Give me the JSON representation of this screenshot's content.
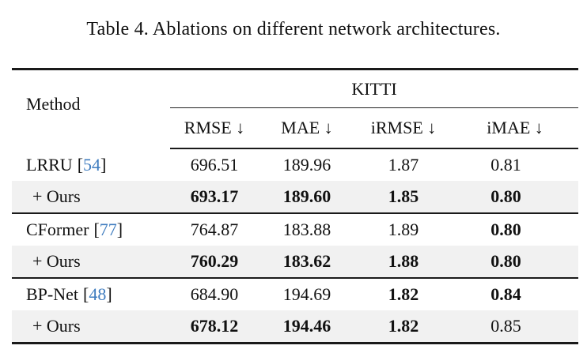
{
  "caption": "Table 4. Ablations on different network architectures.",
  "table": {
    "header": {
      "method": "Method",
      "dataset": "KITTI",
      "columns": [
        "RMSE ↓",
        "MAE ↓",
        "iRMSE ↓",
        "iMAE ↓"
      ]
    },
    "bracket_open": "[",
    "bracket_close": "]",
    "rows": [
      {
        "name": "LRRU",
        "cite": "54",
        "highlight": false,
        "values": [
          "696.51",
          "189.96",
          "1.87",
          "0.81"
        ],
        "bold": [
          false,
          false,
          false,
          false
        ]
      },
      {
        "name": "+ Ours",
        "cite": "",
        "highlight": true,
        "values": [
          "693.17",
          "189.60",
          "1.85",
          "0.80"
        ],
        "bold": [
          true,
          true,
          true,
          true
        ]
      },
      {
        "name": "CFormer",
        "cite": "77",
        "highlight": false,
        "values": [
          "764.87",
          "183.88",
          "1.89",
          "0.80"
        ],
        "bold": [
          false,
          false,
          false,
          true
        ]
      },
      {
        "name": "+ Ours",
        "cite": "",
        "highlight": true,
        "values": [
          "760.29",
          "183.62",
          "1.88",
          "0.80"
        ],
        "bold": [
          true,
          true,
          true,
          true
        ]
      },
      {
        "name": "BP-Net",
        "cite": "48",
        "highlight": false,
        "values": [
          "684.90",
          "194.69",
          "1.82",
          "0.84"
        ],
        "bold": [
          false,
          false,
          true,
          true
        ]
      },
      {
        "name": "+ Ours",
        "cite": "",
        "highlight": true,
        "values": [
          "678.12",
          "194.46",
          "1.82",
          "0.85"
        ],
        "bold": [
          true,
          true,
          true,
          false
        ]
      }
    ]
  },
  "colors": {
    "highlight_row": "#f1f1f1",
    "citation": "#3f7cbf",
    "text": "#111111",
    "rule": "#1a1a1a"
  }
}
